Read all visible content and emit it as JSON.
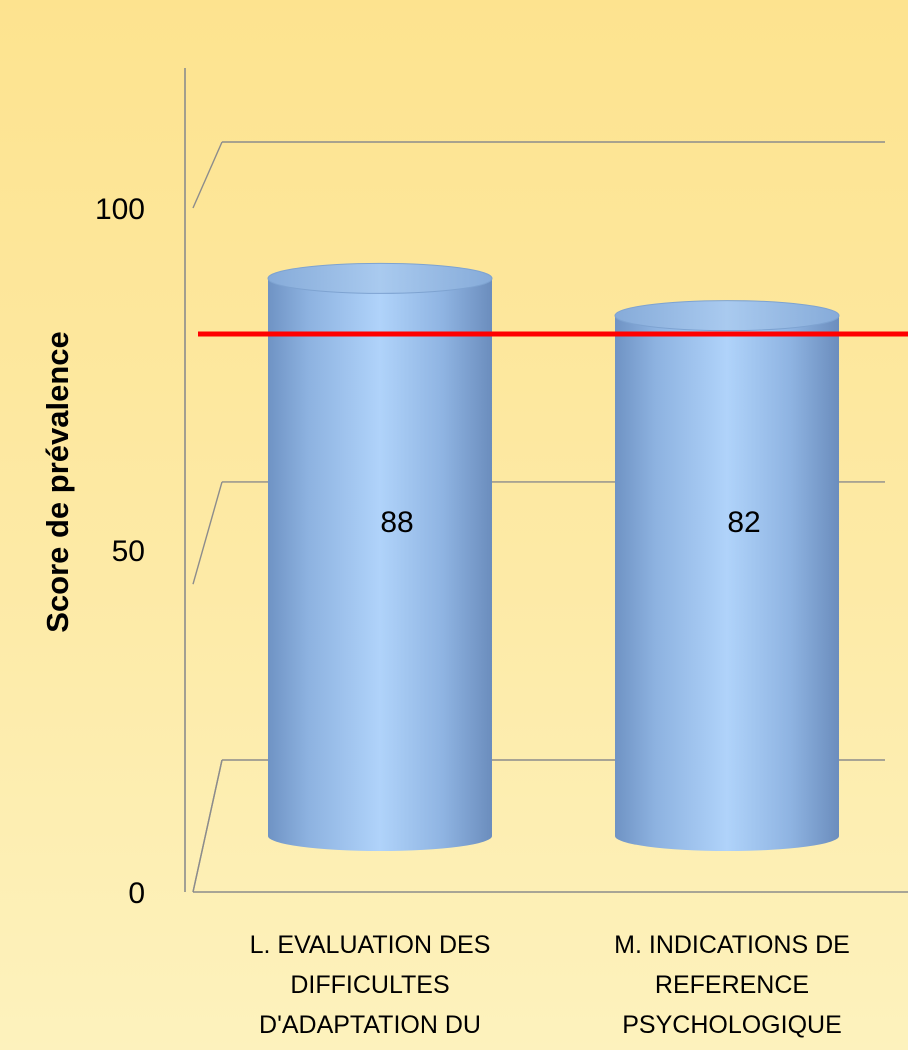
{
  "chart_data": {
    "type": "bar",
    "style": "3d-cylinder",
    "title": "",
    "ylabel": "Score de prévalence",
    "xlabel": "",
    "ylim": [
      0,
      115
    ],
    "yticks": [
      0,
      50,
      100
    ],
    "grid": true,
    "legend": "none",
    "categories": [
      [
        "L. EVALUATION DES",
        "DIFFICULTES",
        "D'ADAPTATION DU"
      ],
      [
        "M. INDICATIONS DE",
        "REFERENCE",
        "PSYCHOLOGIQUE"
      ]
    ],
    "values": [
      88,
      82
    ],
    "data_labels": [
      "88",
      "82"
    ],
    "reference_line": {
      "value": 80
    },
    "colors": {
      "bar": "#8fb8e6",
      "reference_line": "#ff0000",
      "axis": "#8c8c8c"
    }
  }
}
